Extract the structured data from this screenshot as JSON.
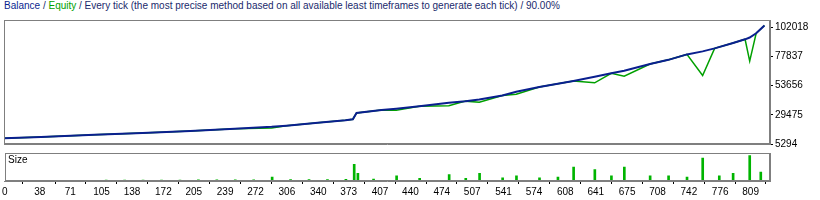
{
  "chart_data": [
    {
      "type": "line",
      "title": "Balance / Equity / Every tick (the most precise method based on all available least timeframes to generate each tick) / 90.00%",
      "x": [
        0,
        40,
        98,
        150,
        202,
        250,
        290,
        306,
        340,
        370,
        378,
        382,
        409,
        425,
        450,
        482,
        500,
        515,
        540,
        555,
        580,
        617,
        640,
        658,
        672,
        700,
        720,
        740,
        757,
        770,
        790,
        803,
        808,
        815,
        824
      ],
      "series": [
        {
          "name": "Balance",
          "color": "#0a1f8f",
          "values": [
            10000,
            11000,
            12900,
            14500,
            16000,
            18000,
            19500,
            20500,
            22800,
            25000,
            25800,
            31000,
            33400,
            34500,
            36500,
            39500,
            40800,
            42200,
            45500,
            48500,
            52500,
            57500,
            61000,
            63900,
            66000,
            71500,
            75000,
            79500,
            82000,
            84500,
            89000,
            92000,
            93500,
            97000,
            103500
          ]
        },
        {
          "name": "Equity",
          "color": "#00a000",
          "values": [
            10000,
            11000,
            12900,
            14500,
            16000,
            18000,
            18500,
            20500,
            22800,
            25000,
            25800,
            31000,
            33400,
            33200,
            36500,
            37000,
            40800,
            39800,
            45500,
            46500,
            52500,
            57500,
            56000,
            63900,
            61500,
            71500,
            75000,
            79500,
            62000,
            84500,
            89000,
            92000,
            74000,
            97000,
            103500
          ]
        }
      ],
      "xlim": [
        0,
        830
      ],
      "ylim": [
        5294,
        108000
      ],
      "yticks": [
        5294,
        29475,
        53656,
        77837,
        102018
      ],
      "grid": false,
      "tick_labels": "y"
    },
    {
      "type": "bar",
      "title": "Size",
      "x": [
        10,
        30,
        50,
        70,
        90,
        110,
        130,
        150,
        170,
        190,
        210,
        230,
        250,
        270,
        290,
        310,
        330,
        350,
        370,
        379,
        383,
        400,
        425,
        450,
        482,
        500,
        515,
        540,
        555,
        580,
        600,
        617,
        640,
        658,
        672,
        700,
        720,
        740,
        757,
        775,
        790,
        808,
        820
      ],
      "values": [
        0.03,
        0.03,
        0.03,
        0.03,
        0.03,
        0.04,
        0.04,
        0.04,
        0.04,
        0.04,
        0.05,
        0.05,
        0.05,
        0.05,
        0.15,
        0.06,
        0.06,
        0.06,
        0.07,
        0.65,
        0.3,
        0.08,
        0.2,
        0.1,
        0.25,
        0.1,
        0.3,
        0.12,
        0.2,
        0.12,
        0.15,
        0.55,
        0.45,
        0.2,
        0.55,
        0.2,
        0.2,
        0.15,
        0.9,
        0.2,
        0.3,
        1.0,
        0.35
      ],
      "color": "#00b400",
      "xlim": [
        0,
        830
      ],
      "ylim": [
        0,
        1.1
      ],
      "xticks": [
        0,
        38,
        71,
        105,
        138,
        172,
        205,
        239,
        272,
        306,
        340,
        373,
        407,
        440,
        474,
        507,
        541,
        574,
        608,
        641,
        675,
        708,
        742,
        776,
        809
      ],
      "grid": false,
      "tick_labels": "x"
    }
  ]
}
